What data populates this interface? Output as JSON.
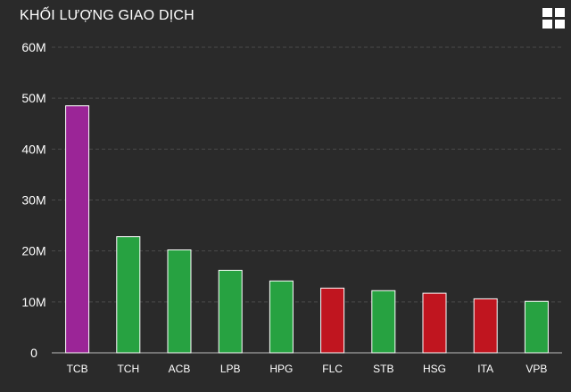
{
  "header": {
    "title": "KHỐI LƯỢNG GIAO DỊCH",
    "menu_icon": "grid-menu-icon"
  },
  "colors": {
    "background": "#2a2a2a",
    "gridline": "#4a4a4a",
    "up": "#27a241",
    "down": "#c0151f",
    "ceiling": "#9b2597"
  },
  "chart_data": {
    "type": "bar",
    "title": "KHỐI LƯỢNG GIAO DỊCH",
    "xlabel": "",
    "ylabel": "",
    "ylim": [
      0,
      60000000
    ],
    "y_ticks": [
      {
        "value": 0,
        "label": "0"
      },
      {
        "value": 10000000,
        "label": "10M"
      },
      {
        "value": 20000000,
        "label": "20M"
      },
      {
        "value": 30000000,
        "label": "30M"
      },
      {
        "value": 40000000,
        "label": "40M"
      },
      {
        "value": 50000000,
        "label": "50M"
      },
      {
        "value": 60000000,
        "label": "60M"
      }
    ],
    "grid": true,
    "categories": [
      "TCB",
      "TCH",
      "ACB",
      "LPB",
      "HPG",
      "FLC",
      "STB",
      "HSG",
      "ITA",
      "VPB"
    ],
    "values": [
      48500000,
      22800000,
      20200000,
      16200000,
      14100000,
      12700000,
      12200000,
      11700000,
      10600000,
      10100000
    ],
    "bar_colors": [
      "#9b2597",
      "#27a241",
      "#27a241",
      "#27a241",
      "#27a241",
      "#c0151f",
      "#27a241",
      "#c0151f",
      "#c0151f",
      "#27a241"
    ]
  }
}
